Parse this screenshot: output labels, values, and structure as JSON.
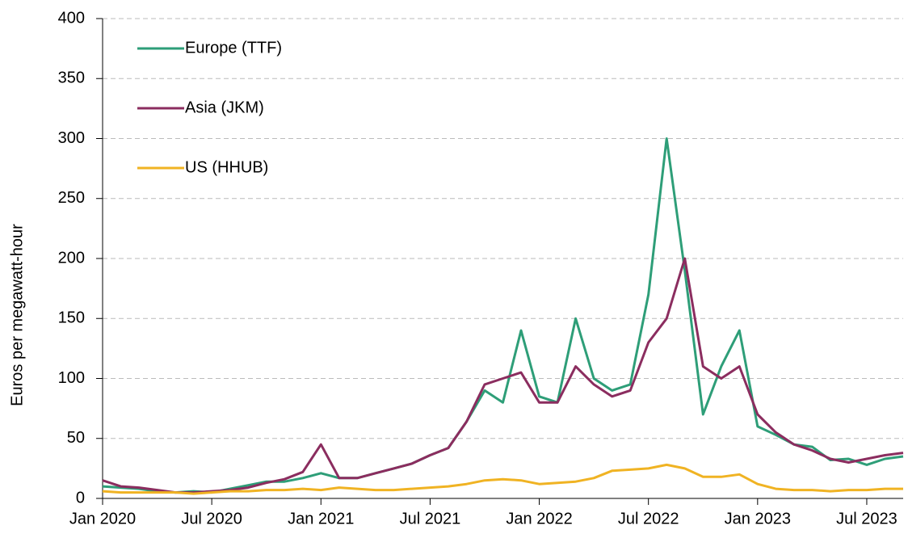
{
  "chart_data": {
    "type": "line",
    "y_label": "Euros per megawatt-hour",
    "x": [
      "2020-01",
      "2020-02",
      "2020-03",
      "2020-04",
      "2020-05",
      "2020-06",
      "2020-07",
      "2020-08",
      "2020-09",
      "2020-10",
      "2020-11",
      "2020-12",
      "2021-01",
      "2021-02",
      "2021-03",
      "2021-04",
      "2021-05",
      "2021-06",
      "2021-07",
      "2021-08",
      "2021-09",
      "2021-10",
      "2021-11",
      "2021-12",
      "2022-01",
      "2022-02",
      "2022-03",
      "2022-04",
      "2022-05",
      "2022-06",
      "2022-07",
      "2022-08",
      "2022-09",
      "2022-10",
      "2022-11",
      "2022-12",
      "2023-01",
      "2023-02",
      "2023-03",
      "2023-04",
      "2023-05",
      "2023-06",
      "2023-07",
      "2023-08",
      "2023-09"
    ],
    "series": [
      {
        "name": "Europe (TTF)",
        "color": "#2e9e78",
        "values": [
          10,
          9,
          8,
          6,
          5,
          6,
          5,
          8,
          11,
          14,
          14,
          17,
          21,
          17,
          17,
          21,
          25,
          29,
          36,
          42,
          64,
          90,
          80,
          140,
          85,
          80,
          150,
          100,
          90,
          95,
          170,
          300,
          190,
          70,
          110,
          140,
          60,
          53,
          45,
          43,
          32,
          33,
          28,
          33,
          35
        ]
      },
      {
        "name": "Asia (JKM)",
        "color": "#8b2d5f",
        "values": [
          15,
          10,
          9,
          7,
          5,
          5,
          6,
          7,
          9,
          13,
          16,
          22,
          45,
          17,
          17,
          21,
          25,
          29,
          36,
          42,
          64,
          95,
          100,
          105,
          80,
          80,
          110,
          95,
          85,
          90,
          130,
          150,
          200,
          110,
          100,
          110,
          70,
          55,
          45,
          40,
          33,
          30,
          33,
          36,
          38
        ]
      },
      {
        "name": "US (HHUB)",
        "color": "#f0b323",
        "values": [
          6,
          5,
          5,
          5,
          5,
          4,
          5,
          6,
          6,
          7,
          7,
          8,
          7,
          9,
          8,
          7,
          7,
          8,
          9,
          10,
          12,
          15,
          16,
          15,
          12,
          13,
          14,
          17,
          23,
          24,
          25,
          28,
          25,
          18,
          18,
          20,
          12,
          8,
          7,
          7,
          6,
          7,
          7,
          8,
          8
        ]
      }
    ],
    "xlim": [
      "2020-01",
      "2023-09"
    ],
    "xticks": [
      {
        "value": "2020-01",
        "label": "Jan 2020"
      },
      {
        "value": "2020-07",
        "label": "Jul 2020"
      },
      {
        "value": "2021-01",
        "label": "Jan 2021"
      },
      {
        "value": "2021-07",
        "label": "Jul 2021"
      },
      {
        "value": "2022-01",
        "label": "Jan 2022"
      },
      {
        "value": "2022-07",
        "label": "Jul 2022"
      },
      {
        "value": "2023-01",
        "label": "Jan 2023"
      },
      {
        "value": "2023-07",
        "label": "Jul 2023"
      }
    ],
    "ylim": [
      0,
      400
    ],
    "yticks": [
      0,
      50,
      100,
      150,
      200,
      250,
      300,
      350,
      400
    ],
    "grid": true,
    "legend": "upper left"
  }
}
